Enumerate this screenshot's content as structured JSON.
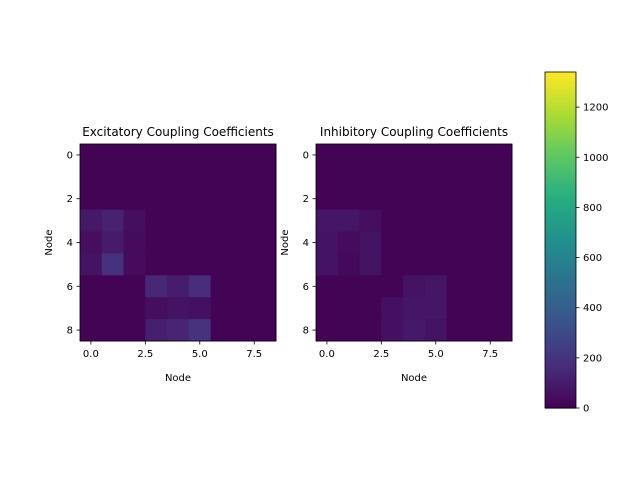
{
  "chart_data": [
    {
      "type": "heatmap",
      "title": "Excitatory Coupling Coefficients",
      "xlabel": "Node",
      "ylabel": "Node",
      "x_ticks": [
        "0.0",
        "2.5",
        "5.0",
        "7.5"
      ],
      "y_ticks": [
        "0",
        "2",
        "4",
        "6",
        "8"
      ],
      "rows": 9,
      "cols": 9,
      "values": [
        [
          10,
          10,
          10,
          10,
          10,
          10,
          10,
          10,
          10
        ],
        [
          10,
          10,
          10,
          10,
          10,
          10,
          10,
          10,
          10
        ],
        [
          10,
          10,
          10,
          10,
          10,
          10,
          10,
          10,
          10
        ],
        [
          90,
          130,
          50,
          10,
          10,
          10,
          10,
          10,
          10
        ],
        [
          50,
          100,
          40,
          10,
          10,
          10,
          10,
          10,
          10
        ],
        [
          70,
          190,
          40,
          10,
          10,
          10,
          10,
          10,
          10
        ],
        [
          10,
          10,
          10,
          150,
          110,
          170,
          10,
          10,
          10
        ],
        [
          10,
          10,
          10,
          50,
          70,
          60,
          10,
          10,
          10
        ],
        [
          10,
          10,
          10,
          120,
          140,
          200,
          10,
          10,
          10
        ]
      ]
    },
    {
      "type": "heatmap",
      "title": "Inhibitory Coupling Coefficients",
      "xlabel": "Node",
      "ylabel": "Node",
      "x_ticks": [
        "0.0",
        "2.5",
        "5.0",
        "7.5"
      ],
      "y_ticks": [
        "0",
        "2",
        "4",
        "6",
        "8"
      ],
      "rows": 9,
      "cols": 9,
      "values": [
        [
          10,
          10,
          10,
          10,
          10,
          10,
          10,
          10,
          10
        ],
        [
          10,
          10,
          10,
          10,
          10,
          10,
          10,
          10,
          10
        ],
        [
          10,
          10,
          10,
          10,
          10,
          10,
          10,
          10,
          10
        ],
        [
          80,
          80,
          50,
          10,
          10,
          10,
          10,
          10,
          10
        ],
        [
          70,
          40,
          70,
          10,
          10,
          10,
          10,
          10,
          10
        ],
        [
          70,
          30,
          70,
          10,
          10,
          10,
          10,
          10,
          10
        ],
        [
          10,
          10,
          10,
          10,
          70,
          80,
          10,
          10,
          10
        ],
        [
          10,
          10,
          10,
          60,
          80,
          80,
          10,
          10,
          10
        ],
        [
          10,
          10,
          10,
          60,
          90,
          70,
          10,
          10,
          10
        ]
      ]
    }
  ],
  "colorbar": {
    "colormap": "viridis",
    "vmin": 0,
    "vmax": 1340,
    "ticks": [
      0,
      200,
      400,
      600,
      800,
      1000,
      1200
    ]
  }
}
